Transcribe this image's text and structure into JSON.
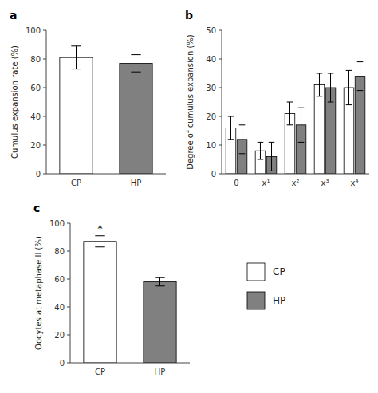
{
  "chart_data": [
    {
      "type": "bar",
      "title": "a",
      "categories": [
        "CP",
        "HP"
      ],
      "values": [
        81,
        77
      ],
      "errors": [
        8,
        6
      ],
      "colors": [
        "#ffffff",
        "#808080"
      ],
      "ylabel": "Cumulus expansion rate (%)",
      "ylim": [
        0,
        100
      ],
      "yticks": [
        0,
        20,
        40,
        60,
        80,
        100
      ]
    },
    {
      "type": "bar",
      "title": "b",
      "categories": [
        "0",
        "x¹",
        "x²",
        "x³",
        "x⁴"
      ],
      "series": [
        {
          "name": "CP",
          "color": "#ffffff",
          "values": [
            16,
            8,
            21,
            31,
            30
          ],
          "errors": [
            4,
            3,
            4,
            4,
            6
          ]
        },
        {
          "name": "HP",
          "color": "#808080",
          "values": [
            12,
            6,
            17,
            30,
            34
          ],
          "errors": [
            5,
            5,
            6,
            5,
            5
          ]
        }
      ],
      "ylabel": "Degree of cumulus expansion (%)",
      "ylim": [
        0,
        50
      ],
      "yticks": [
        0,
        10,
        20,
        30,
        40,
        50
      ],
      "legend": "lower right"
    },
    {
      "type": "bar",
      "title": "c",
      "categories": [
        "CP",
        "HP"
      ],
      "values": [
        87,
        58
      ],
      "errors": [
        4,
        3
      ],
      "colors": [
        "#ffffff",
        "#808080"
      ],
      "ylabel": "Oocytes at metaphase II (%)",
      "ylim": [
        0,
        100
      ],
      "yticks": [
        0,
        20,
        40,
        60,
        80,
        100
      ],
      "annotations": [
        {
          "text": "*",
          "category": "CP"
        }
      ]
    }
  ]
}
